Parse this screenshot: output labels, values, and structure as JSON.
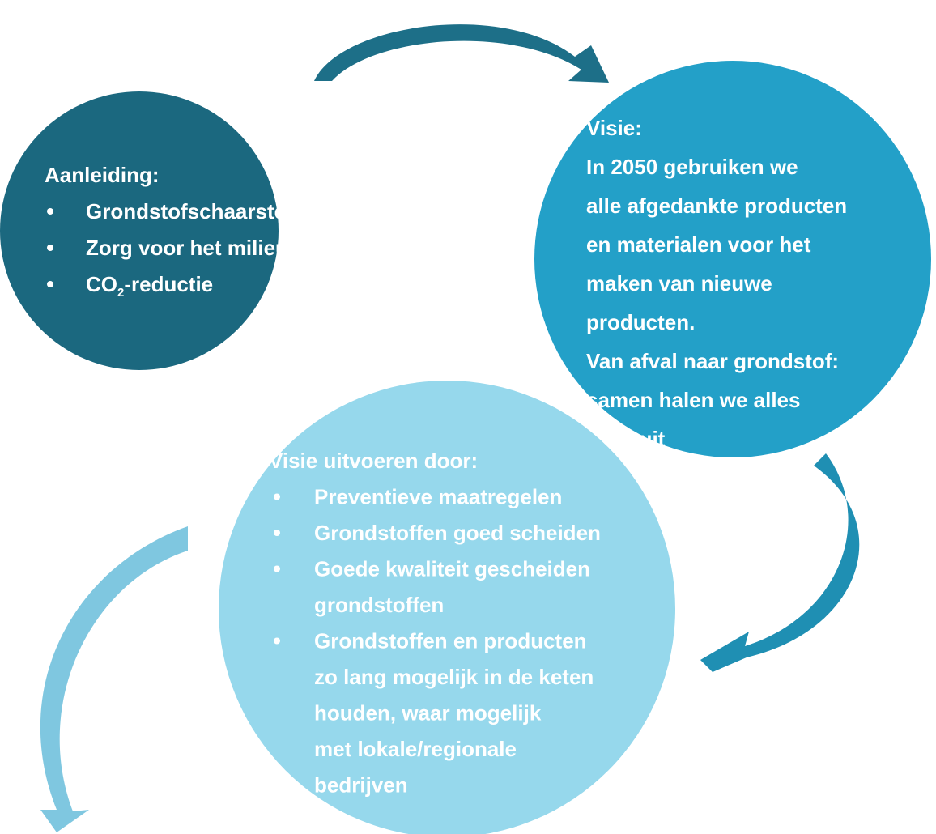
{
  "circles": [
    {
      "title": "Aanleiding:",
      "items": [
        [
          "Grondstofschaarste"
        ],
        [
          "Zorg voor het milieu"
        ],
        [
          "CO",
          "2",
          "-reductie"
        ]
      ]
    },
    {
      "lines": [
        "Visie:",
        "In 2050 gebruiken we",
        "alle afgedankte producten",
        "en materialen voor het",
        "maken van nieuwe",
        "producten.",
        "Van afval naar grondstof:",
        "samen halen we alles",
        "eruit"
      ]
    },
    {
      "title": "Visie uitvoeren door:",
      "items": [
        [
          "Preventieve maatregelen"
        ],
        [
          "Grondstoffen goed scheiden"
        ],
        [
          "Goede kwaliteit gescheiden",
          "grondstoffen"
        ],
        [
          "Grondstoffen en producten",
          "zo lang mogelijk in de keten",
          "houden, waar mogelijk",
          "met lokale/regionale",
          "bedrijven"
        ]
      ]
    }
  ]
}
